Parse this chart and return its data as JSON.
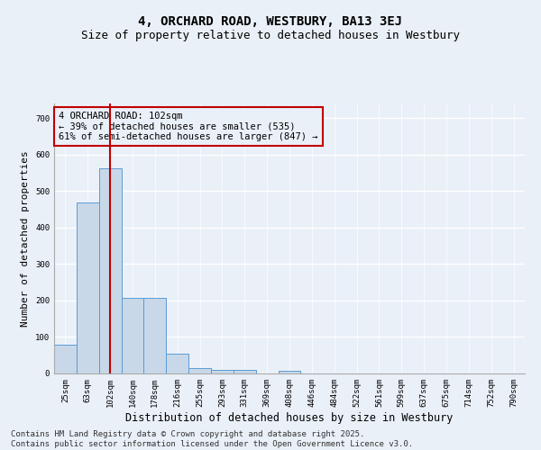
{
  "title1": "4, ORCHARD ROAD, WESTBURY, BA13 3EJ",
  "title2": "Size of property relative to detached houses in Westbury",
  "xlabel": "Distribution of detached houses by size in Westbury",
  "ylabel": "Number of detached properties",
  "categories": [
    "25sqm",
    "63sqm",
    "102sqm",
    "140sqm",
    "178sqm",
    "216sqm",
    "255sqm",
    "293sqm",
    "331sqm",
    "369sqm",
    "408sqm",
    "446sqm",
    "484sqm",
    "522sqm",
    "561sqm",
    "599sqm",
    "637sqm",
    "675sqm",
    "714sqm",
    "752sqm",
    "790sqm"
  ],
  "values": [
    78,
    468,
    562,
    207,
    207,
    55,
    15,
    10,
    10,
    0,
    8,
    0,
    0,
    0,
    0,
    0,
    0,
    0,
    0,
    0,
    0
  ],
  "bar_color": "#c8d8e8",
  "bar_edge_color": "#5b9bd5",
  "highlight_index": 2,
  "highlight_line_color": "#c00000",
  "annotation_text": "4 ORCHARD ROAD: 102sqm\n← 39% of detached houses are smaller (535)\n61% of semi-detached houses are larger (847) →",
  "annotation_box_color": "#c00000",
  "ylim": [
    0,
    740
  ],
  "yticks": [
    0,
    100,
    200,
    300,
    400,
    500,
    600,
    700
  ],
  "footer1": "Contains HM Land Registry data © Crown copyright and database right 2025.",
  "footer2": "Contains public sector information licensed under the Open Government Licence v3.0.",
  "bg_color": "#eaf0f8",
  "grid_color": "#ffffff",
  "title_fontsize": 10,
  "subtitle_fontsize": 9,
  "axis_label_fontsize": 8,
  "tick_fontsize": 6.5,
  "footer_fontsize": 6.5,
  "ann_fontsize": 7.5
}
